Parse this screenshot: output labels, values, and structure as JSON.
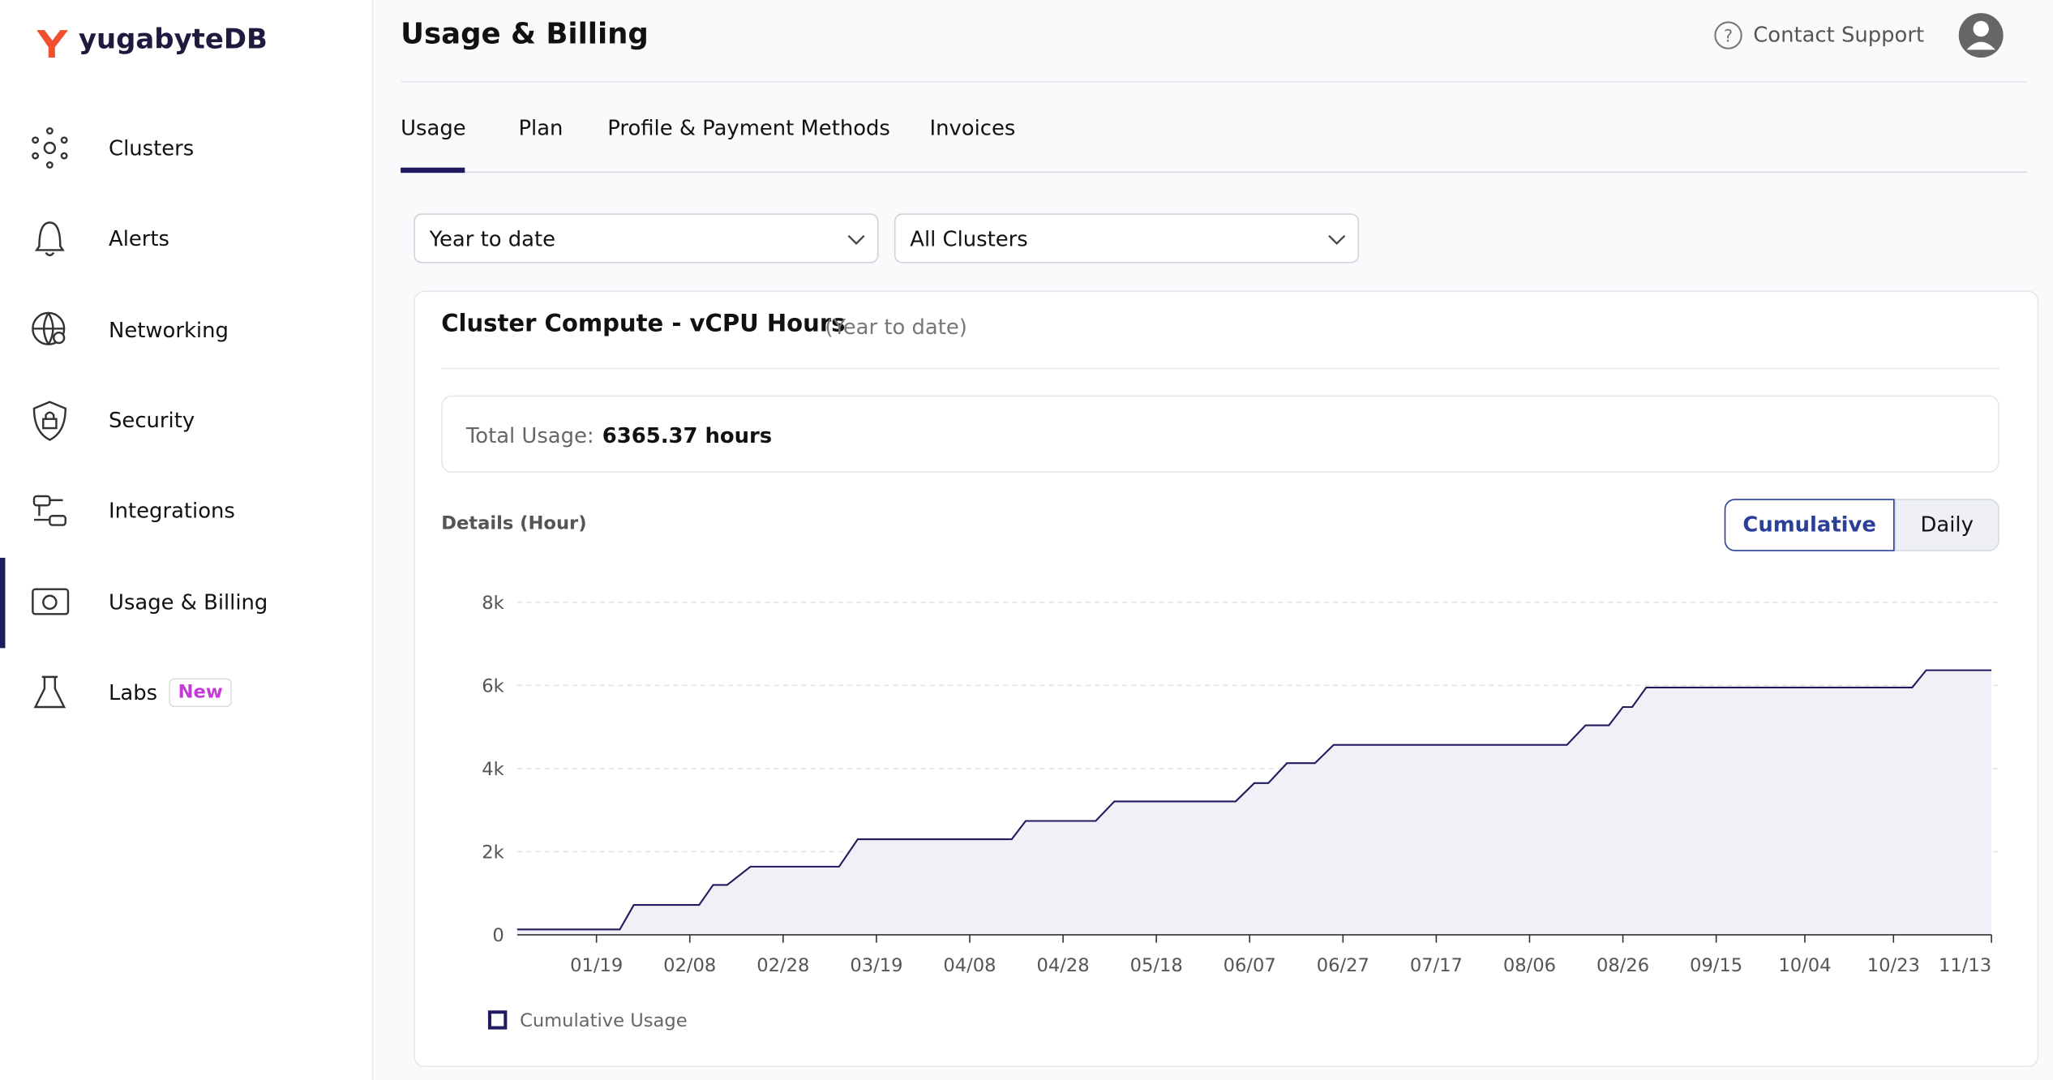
{
  "sidebar": {
    "logo": "yugabyteDB",
    "items": [
      "Clusters",
      "Alerts",
      "Networking",
      "Security",
      "Integrations",
      "Usage & Billing",
      "Labs"
    ],
    "badge": "New"
  },
  "header": {
    "title": "Usage & Billing",
    "support": "Contact Support"
  },
  "tabs": [
    "Usage",
    "Plan",
    "Profile & Payment Methods",
    "Invoices"
  ],
  "filters": [
    "Year to date",
    "All Clusters"
  ],
  "card": {
    "title": "Cluster Compute - vCPU Hours",
    "subtitle": "(Year to date)",
    "total_label": "Total Usage:",
    "total_value": "6365.37 hours",
    "details_label": "Details (Hour)",
    "toggle": [
      "Cumulative",
      "Daily"
    ]
  },
  "chart_data": {
    "type": "area",
    "x": [
      0,
      22,
      25,
      39,
      42,
      45,
      50,
      69,
      73,
      106,
      109,
      124,
      128,
      154,
      158,
      161,
      165,
      171,
      175,
      225,
      229,
      234,
      237,
      239,
      242,
      299,
      302,
      316
    ],
    "series": [
      {
        "name": "Cumulative Usage",
        "color": "#1e1b5e",
        "values": [
          130,
          130,
          720,
          720,
          1200,
          1200,
          1640,
          1640,
          2300,
          2300,
          2740,
          2740,
          3210,
          3210,
          3650,
          3650,
          4130,
          4130,
          4570,
          4570,
          5040,
          5040,
          5480,
          5480,
          5950,
          5950,
          6365,
          6365
        ]
      }
    ],
    "xlim": [
      0,
      316
    ],
    "xticks": [
      {
        "value": 17,
        "label": "01/19"
      },
      {
        "value": 37,
        "label": "02/08"
      },
      {
        "value": 57,
        "label": "02/28"
      },
      {
        "value": 77,
        "label": "03/19"
      },
      {
        "value": 97,
        "label": "04/08"
      },
      {
        "value": 117,
        "label": "04/28"
      },
      {
        "value": 137,
        "label": "05/18"
      },
      {
        "value": 157,
        "label": "06/07"
      },
      {
        "value": 177,
        "label": "06/27"
      },
      {
        "value": 197,
        "label": "07/17"
      },
      {
        "value": 217,
        "label": "08/06"
      },
      {
        "value": 237,
        "label": "08/26"
      },
      {
        "value": 257,
        "label": "09/15"
      },
      {
        "value": 276,
        "label": "10/04"
      },
      {
        "value": 295,
        "label": "10/23"
      },
      {
        "value": 316,
        "label": "11/13"
      }
    ],
    "ylim": [
      0,
      8000
    ],
    "yticks": [
      0,
      {
        "value": 2000,
        "label": "2k"
      },
      {
        "value": 4000,
        "label": "4k"
      },
      {
        "value": 6000,
        "label": "6k"
      },
      {
        "value": 8000,
        "label": "8k"
      }
    ],
    "grid": true,
    "fill_color": "#f1f0f7"
  }
}
